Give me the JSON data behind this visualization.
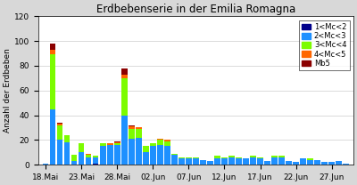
{
  "title": "Erdbebenserie in der Emilia Romagna",
  "ylabel": "Anzahl der Erdbeben",
  "ylim": [
    0,
    120
  ],
  "yticks": [
    0,
    20,
    40,
    60,
    80,
    100,
    120
  ],
  "colors": {
    "cat1": "#00008B",
    "cat2": "#1E90FF",
    "cat3": "#7CFC00",
    "cat4": "#FF6600",
    "cat5": "#8B0000"
  },
  "legend_labels": [
    "1<Mc<2",
    "2<Mc<3",
    "3<Mc<4",
    "4<Mc<5",
    "Mb5"
  ],
  "xtick_labels": [
    "18.Mai",
    "23.Mai",
    "28.Mai",
    "02.Jun",
    "07.Jun",
    "12.Jun",
    "17.Jun",
    "22.Jun",
    "27.Jun"
  ],
  "bars": {
    "cat1": [
      0,
      0,
      0,
      0,
      0,
      0,
      0,
      1,
      0,
      0,
      0,
      0,
      0,
      0,
      0,
      0,
      0,
      0,
      0,
      0,
      0,
      0,
      0,
      0,
      0,
      0,
      0,
      0,
      0,
      0,
      0,
      0,
      0,
      0,
      0,
      0,
      0,
      0,
      0,
      0,
      0,
      0,
      0
    ],
    "cat2": [
      1,
      45,
      20,
      18,
      3,
      10,
      6,
      5,
      15,
      16,
      16,
      40,
      21,
      22,
      10,
      15,
      16,
      15,
      8,
      5,
      5,
      5,
      4,
      3,
      5,
      5,
      6,
      5,
      5,
      6,
      5,
      3,
      6,
      6,
      3,
      2,
      5,
      4,
      4,
      2,
      2,
      3,
      1
    ],
    "cat3": [
      0,
      44,
      12,
      6,
      5,
      7,
      2,
      1,
      2,
      0,
      1,
      30,
      8,
      7,
      5,
      2,
      4,
      4,
      1,
      1,
      1,
      1,
      0,
      0,
      2,
      1,
      1,
      1,
      0,
      1,
      1,
      0,
      1,
      1,
      0,
      0,
      0,
      1,
      0,
      0,
      0,
      0,
      0
    ],
    "cat4": [
      0,
      4,
      1,
      0,
      0,
      0,
      1,
      0,
      0,
      1,
      1,
      3,
      2,
      1,
      0,
      0,
      1,
      1,
      0,
      0,
      0,
      0,
      0,
      0,
      0,
      0,
      0,
      0,
      0,
      0,
      0,
      0,
      0,
      0,
      0,
      0,
      0,
      0,
      0,
      0,
      0,
      0,
      0
    ],
    "cat5": [
      0,
      5,
      1,
      0,
      0,
      0,
      0,
      0,
      0,
      0,
      1,
      5,
      1,
      0,
      0,
      0,
      0,
      0,
      0,
      0,
      0,
      0,
      0,
      0,
      0,
      0,
      0,
      0,
      0,
      0,
      0,
      0,
      0,
      0,
      0,
      0,
      0,
      0,
      0,
      0,
      0,
      0,
      0
    ]
  },
  "n_bars": 43,
  "xtick_positions": [
    0,
    5,
    10,
    15,
    20,
    25,
    30,
    35,
    40
  ],
  "background_color": "#d8d8d8",
  "plot_bg_color": "#ffffff"
}
